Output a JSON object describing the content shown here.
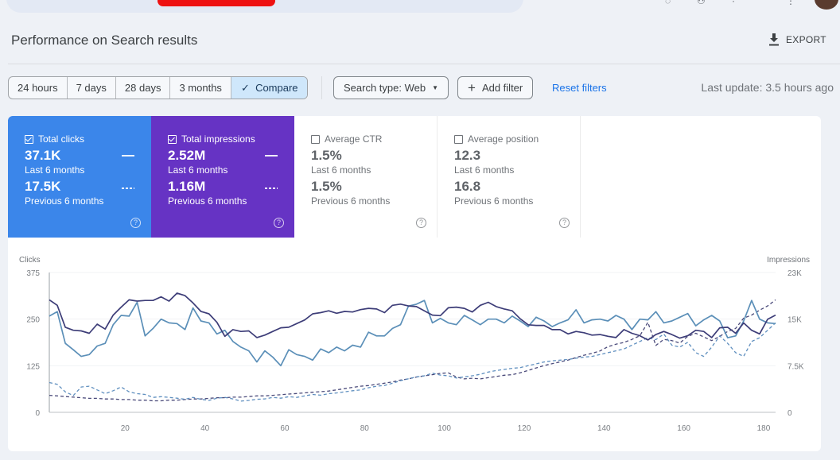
{
  "header": {
    "page_title": "Performance on Search results",
    "export_label": "EXPORT"
  },
  "filters": {
    "ranges": [
      "24 hours",
      "7 days",
      "28 days",
      "3 months"
    ],
    "compare_label": "Compare",
    "search_type": "Search type: Web",
    "add_filter": "Add filter",
    "reset_filters": "Reset filters",
    "last_update": "Last update: 3.5 hours ago"
  },
  "metrics": [
    {
      "label": "Total clicks",
      "checked": true,
      "current": "37.1K",
      "current_period": "Last 6 months",
      "previous": "17.5K",
      "previous_period": "Previous 6 months",
      "color": "#3b86ea"
    },
    {
      "label": "Total impressions",
      "checked": true,
      "current": "2.52M",
      "current_period": "Last 6 months",
      "previous": "1.16M",
      "previous_period": "Previous 6 months",
      "color": "#6633c4"
    },
    {
      "label": "Average CTR",
      "checked": false,
      "current": "1.5%",
      "current_period": "Last 6 months",
      "previous": "1.5%",
      "previous_period": "Previous 6 months"
    },
    {
      "label": "Average position",
      "checked": false,
      "current": "12.3",
      "current_period": "Last 6 months",
      "previous": "16.8",
      "previous_period": "Previous 6 months"
    }
  ],
  "chart_data": {
    "type": "line",
    "y_left_label": "Clicks",
    "y_right_label": "Impressions",
    "y_left_ticks": [
      "0",
      "125",
      "250",
      "375"
    ],
    "y_right_ticks": [
      "0",
      "7.5K",
      "15K",
      "23K"
    ],
    "x_ticks": [
      "20",
      "40",
      "60",
      "80",
      "100",
      "120",
      "140",
      "160",
      "180"
    ],
    "ylim_left": [
      0,
      375
    ],
    "ylim_right": [
      0,
      23000
    ],
    "xlim": [
      1,
      183
    ],
    "grid": true,
    "x": [
      1,
      3,
      5,
      7,
      9,
      11,
      13,
      15,
      17,
      19,
      21,
      23,
      25,
      27,
      29,
      31,
      33,
      35,
      37,
      39,
      41,
      43,
      45,
      47,
      49,
      51,
      53,
      55,
      57,
      59,
      61,
      63,
      65,
      67,
      69,
      71,
      73,
      75,
      77,
      79,
      81,
      83,
      85,
      87,
      89,
      91,
      93,
      95,
      97,
      99,
      101,
      103,
      105,
      107,
      109,
      111,
      113,
      115,
      117,
      119,
      121,
      123,
      125,
      127,
      129,
      131,
      133,
      135,
      137,
      139,
      141,
      143,
      145,
      147,
      149,
      151,
      153,
      155,
      157,
      159,
      161,
      163,
      165,
      167,
      169,
      171,
      173,
      175,
      177,
      179,
      181,
      183
    ],
    "series": [
      {
        "name": "Clicks (Last 6 months)",
        "axis": "left",
        "style": "solid",
        "color": "#5b8fb8",
        "values": [
          258,
          270,
          185,
          168,
          150,
          155,
          178,
          185,
          235,
          260,
          258,
          295,
          205,
          225,
          250,
          240,
          238,
          222,
          280,
          245,
          240,
          210,
          220,
          190,
          175,
          165,
          135,
          165,
          148,
          125,
          168,
          155,
          150,
          140,
          170,
          160,
          175,
          165,
          180,
          175,
          215,
          205,
          205,
          225,
          235,
          285,
          290,
          300,
          240,
          252,
          240,
          235,
          260,
          248,
          235,
          250,
          250,
          240,
          258,
          245,
          230,
          255,
          245,
          230,
          240,
          248,
          275,
          240,
          248,
          250,
          245,
          260,
          250,
          222,
          250,
          248,
          270,
          240,
          245,
          255,
          265,
          232,
          248,
          260,
          245,
          200,
          205,
          245,
          300,
          250,
          240,
          238
        ]
      },
      {
        "name": "Impressions (Last 6 months)",
        "axis": "right",
        "style": "solid",
        "color": "#3d3d78",
        "values": [
          18500,
          17600,
          14000,
          13500,
          13400,
          13000,
          14500,
          13700,
          16000,
          17300,
          18500,
          18300,
          18400,
          18400,
          19000,
          18300,
          19600,
          19200,
          18000,
          16600,
          16200,
          14800,
          12500,
          13600,
          13300,
          13400,
          12300,
          12700,
          13300,
          13900,
          14000,
          14600,
          15200,
          16200,
          16400,
          16700,
          16300,
          16600,
          16500,
          16900,
          17100,
          17000,
          16400,
          17600,
          17800,
          17500,
          17400,
          16700,
          16000,
          15900,
          17200,
          17300,
          17100,
          16500,
          17600,
          18100,
          17400,
          17000,
          16700,
          15400,
          14400,
          14300,
          14300,
          13600,
          13600,
          12900,
          13300,
          13100,
          12700,
          12800,
          12500,
          12300,
          13600,
          13000,
          12600,
          11900,
          12800,
          13300,
          12800,
          12200,
          12600,
          13500,
          13300,
          12300,
          13900,
          14000,
          13000,
          14700,
          13500,
          12900,
          15300,
          16000
        ]
      },
      {
        "name": "Clicks (Previous 6 months)",
        "axis": "left",
        "style": "dashed",
        "color": "#5f8fbf",
        "values": [
          80,
          75,
          55,
          45,
          68,
          70,
          60,
          50,
          58,
          68,
          55,
          50,
          48,
          40,
          42,
          40,
          38,
          35,
          40,
          35,
          32,
          38,
          40,
          36,
          30,
          32,
          35,
          36,
          40,
          38,
          42,
          40,
          44,
          48,
          46,
          50,
          52,
          55,
          58,
          60,
          66,
          70,
          72,
          78,
          85,
          90,
          95,
          98,
          105,
          100,
          98,
          92,
          95,
          98,
          102,
          108,
          112,
          115,
          118,
          120,
          125,
          130,
          135,
          138,
          140,
          142,
          145,
          148,
          150,
          155,
          160,
          165,
          170,
          180,
          190,
          200,
          195,
          210,
          180,
          175,
          188,
          160,
          150,
          175,
          205,
          185,
          160,
          150,
          190,
          200,
          220,
          240
        ]
      },
      {
        "name": "Impressions (Previous 6 months)",
        "axis": "right",
        "style": "dashed",
        "color": "#4a4a7a",
        "values": [
          2800,
          2700,
          2600,
          2500,
          2400,
          2300,
          2300,
          2200,
          2200,
          2100,
          2100,
          2000,
          2000,
          1900,
          1900,
          2000,
          2000,
          2100,
          2200,
          2200,
          2300,
          2400,
          2400,
          2500,
          2500,
          2600,
          2700,
          2700,
          2800,
          2900,
          3000,
          3100,
          3200,
          3300,
          3400,
          3500,
          3700,
          3900,
          4100,
          4300,
          4400,
          4600,
          4800,
          5000,
          5300,
          5500,
          5800,
          6000,
          6200,
          6400,
          6500,
          5800,
          5500,
          5600,
          5500,
          5700,
          5900,
          6100,
          6200,
          6500,
          6900,
          7300,
          7700,
          8000,
          8300,
          8600,
          9000,
          9400,
          9700,
          10100,
          10800,
          11200,
          11500,
          12000,
          12600,
          14800,
          11000,
          12000,
          11800,
          11400,
          12500,
          13000,
          12400,
          11800,
          12500,
          13300,
          13800,
          15500,
          16000,
          16800,
          17500,
          18500
        ]
      }
    ]
  }
}
